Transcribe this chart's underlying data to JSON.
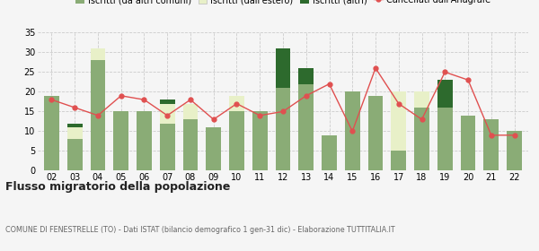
{
  "years": [
    "02",
    "03",
    "04",
    "05",
    "06",
    "07",
    "08",
    "09",
    "10",
    "11",
    "12",
    "13",
    "14",
    "15",
    "16",
    "17",
    "18",
    "19",
    "20",
    "21",
    "22"
  ],
  "iscritti_altri_comuni": [
    19,
    8,
    28,
    15,
    15,
    12,
    13,
    11,
    15,
    15,
    21,
    22,
    9,
    20,
    19,
    5,
    16,
    16,
    14,
    13,
    10
  ],
  "iscritti_estero": [
    0,
    3,
    3,
    0,
    0,
    5,
    4,
    0,
    4,
    0,
    0,
    0,
    0,
    0,
    0,
    15,
    4,
    0,
    0,
    0,
    0
  ],
  "iscritti_altri": [
    0,
    1,
    0,
    0,
    0,
    1,
    0,
    0,
    0,
    0,
    10,
    4,
    0,
    0,
    0,
    0,
    0,
    7,
    0,
    0,
    0
  ],
  "cancellati": [
    18,
    16,
    14,
    19,
    18,
    14,
    18,
    13,
    17,
    14,
    15,
    19,
    22,
    10,
    26,
    17,
    13,
    25,
    23,
    9,
    9
  ],
  "color_altri_comuni": "#8aac76",
  "color_estero": "#e8f0c8",
  "color_altri": "#2d6a2d",
  "color_cancellati": "#e05050",
  "color_grid": "#cccccc",
  "title": "Flusso migratorio della popolazione",
  "subtitle": "COMUNE DI FENESTRELLE (TO) - Dati ISTAT (bilancio demografico 1 gen-31 dic) - Elaborazione TUTTITALIA.IT",
  "ylim": [
    0,
    35
  ],
  "yticks": [
    0,
    5,
    10,
    15,
    20,
    25,
    30,
    35
  ],
  "background_color": "#f5f5f5"
}
